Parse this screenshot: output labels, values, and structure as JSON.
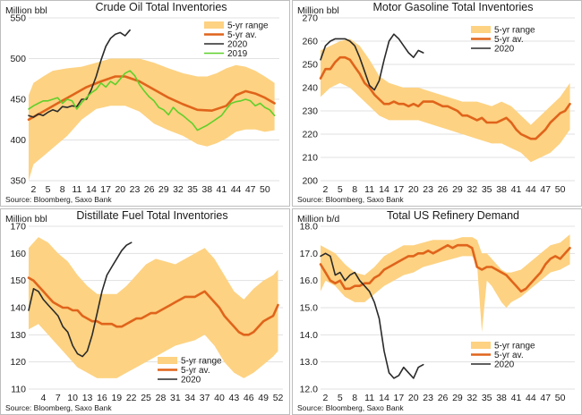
{
  "colors": {
    "range": "#fdd282",
    "average": "#e0641b",
    "y2020": "#2a2a2a",
    "y2019": "#5fd02b",
    "grid": "#e1e1e1",
    "frame": "#bdbdbd"
  },
  "chart_data": [
    {
      "type": "line",
      "title": "Crude Oil Total Inventories",
      "ylabel": "Million bbl",
      "source": "Source: Bloomberg, Saxo Bank",
      "xlim": [
        1,
        53
      ],
      "ylim": [
        350,
        550
      ],
      "yticks": [
        "350",
        "400",
        "450",
        "500",
        "550"
      ],
      "xticks": [
        "2",
        "5",
        "8",
        "11",
        "14",
        "17",
        "20",
        "23",
        "26",
        "29",
        "32",
        "35",
        "38",
        "41",
        "44",
        "47",
        "50"
      ],
      "legend": [
        "5-yr range",
        "5-yr av.",
        "2020",
        "2019"
      ],
      "band": {
        "x": [
          1,
          2,
          4,
          6,
          9,
          12,
          15,
          18,
          21,
          24,
          27,
          30,
          33,
          36,
          38,
          40,
          42,
          44,
          46,
          48,
          50,
          52
        ],
        "low": [
          350,
          370,
          380,
          390,
          405,
          425,
          438,
          442,
          442,
          435,
          420,
          412,
          405,
          395,
          392,
          396,
          402,
          410,
          413,
          413,
          410,
          412
        ],
        "high": [
          455,
          470,
          478,
          485,
          488,
          490,
          495,
          500,
          500,
          500,
          495,
          488,
          482,
          478,
          478,
          482,
          488,
          492,
          490,
          485,
          478,
          470
        ]
      },
      "series": [
        {
          "name": "5-yr av.",
          "x": [
            1,
            4,
            7,
            10,
            13,
            16,
            19,
            21,
            24,
            27,
            30,
            33,
            36,
            39,
            42,
            44,
            46,
            48,
            50,
            52
          ],
          "y": [
            425,
            435,
            445,
            455,
            465,
            472,
            478,
            478,
            472,
            462,
            452,
            444,
            437,
            436,
            442,
            455,
            460,
            457,
            452,
            445
          ]
        },
        {
          "name": "2020",
          "x": [
            1,
            2,
            3,
            4,
            5,
            6,
            7,
            8,
            9,
            10,
            11,
            12,
            13,
            14,
            15,
            16,
            17,
            18,
            19,
            20,
            21,
            22
          ],
          "y": [
            430,
            428,
            432,
            430,
            434,
            437,
            435,
            441,
            440,
            442,
            441,
            450,
            450,
            462,
            478,
            498,
            515,
            525,
            530,
            532,
            528,
            535
          ]
        },
        {
          "name": "2019",
          "x": [
            1,
            2,
            3,
            4,
            5,
            6,
            7,
            8,
            9,
            10,
            11,
            12,
            13,
            14,
            15,
            16,
            17,
            18,
            19,
            20,
            21,
            22,
            23,
            24,
            25,
            26,
            27,
            28,
            29,
            30,
            31,
            32,
            33,
            34,
            35,
            36,
            37,
            38,
            39,
            40,
            41,
            42,
            43,
            44,
            45,
            46,
            47,
            48,
            49,
            50,
            51,
            52
          ],
          "y": [
            438,
            442,
            445,
            448,
            448,
            450,
            452,
            445,
            450,
            448,
            438,
            446,
            452,
            458,
            462,
            470,
            465,
            472,
            468,
            475,
            482,
            485,
            479,
            468,
            460,
            453,
            448,
            440,
            437,
            431,
            440,
            434,
            430,
            425,
            420,
            412,
            415,
            418,
            422,
            426,
            430,
            438,
            445,
            447,
            448,
            450,
            448,
            442,
            445,
            440,
            437,
            430
          ]
        }
      ]
    },
    {
      "type": "line",
      "title": "Motor Gasoline Total Inventories",
      "ylabel": "Million bbl",
      "source": "Source: Bloomberg, Saxo Bank",
      "xlim": [
        1,
        53
      ],
      "ylim": [
        200,
        270
      ],
      "yticks": [
        "200",
        "210",
        "220",
        "230",
        "240",
        "250",
        "260",
        "270"
      ],
      "xticks": [
        "2",
        "5",
        "8",
        "11",
        "14",
        "17",
        "20",
        "23",
        "26",
        "29",
        "32",
        "35",
        "38",
        "41",
        "44",
        "47",
        "50"
      ],
      "legend": [
        "5-yr range",
        "5-yr av.",
        "2020"
      ],
      "band": {
        "x": [
          1,
          3,
          5,
          7,
          9,
          11,
          13,
          15,
          18,
          21,
          24,
          27,
          30,
          33,
          36,
          38,
          40,
          42,
          44,
          46,
          48,
          50,
          52
        ],
        "low": [
          236,
          240,
          242,
          240,
          236,
          232,
          228,
          226,
          226,
          226,
          224,
          222,
          220,
          218,
          216,
          216,
          214,
          212,
          208,
          210,
          212,
          216,
          222
        ],
        "high": [
          256,
          258,
          260,
          261,
          258,
          252,
          245,
          242,
          240,
          240,
          238,
          236,
          234,
          234,
          232,
          234,
          232,
          228,
          224,
          228,
          232,
          236,
          242
        ]
      },
      "series": [
        {
          "name": "5-yr av.",
          "x": [
            1,
            2,
            3,
            4,
            5,
            6,
            7,
            8,
            9,
            10,
            11,
            12,
            13,
            14,
            15,
            16,
            17,
            18,
            19,
            20,
            21,
            22,
            23,
            24,
            25,
            26,
            27,
            28,
            29,
            30,
            31,
            32,
            33,
            34,
            35,
            36,
            37,
            38,
            39,
            40,
            41,
            42,
            43,
            44,
            45,
            46,
            47,
            48,
            49,
            50,
            51,
            52
          ],
          "y": [
            244,
            248,
            248,
            251,
            253,
            253,
            252,
            249,
            246,
            242,
            240,
            237,
            235,
            233,
            233,
            234,
            233,
            233,
            232,
            233,
            232,
            234,
            234,
            234,
            233,
            232,
            232,
            231,
            230,
            228,
            228,
            227,
            226,
            227,
            225,
            225,
            225,
            226,
            227,
            225,
            222,
            220,
            219,
            218,
            218,
            220,
            222,
            225,
            227,
            229,
            230,
            233
          ]
        },
        {
          "name": "2020",
          "x": [
            1,
            2,
            3,
            4,
            5,
            6,
            7,
            8,
            9,
            10,
            11,
            12,
            13,
            14,
            15,
            16,
            17,
            18,
            19,
            20,
            21,
            22
          ],
          "y": [
            252,
            258,
            260,
            261,
            261,
            261,
            260,
            258,
            253,
            247,
            241,
            239,
            243,
            252,
            260,
            263,
            261,
            258,
            255,
            253,
            256,
            255
          ]
        }
      ]
    },
    {
      "type": "line",
      "title": "Distillate Fuel Total Inventories",
      "ylabel": "Million bbl",
      "source": "Source: Bloomberg, Saxo Bank",
      "xlim": [
        1,
        53
      ],
      "ylim": [
        110,
        170
      ],
      "yticks": [
        "110",
        "120",
        "130",
        "140",
        "150",
        "160",
        "170"
      ],
      "xticks": [
        "4",
        "7",
        "10",
        "13",
        "16",
        "19",
        "22",
        "25",
        "28",
        "31",
        "34",
        "37",
        "40",
        "43",
        "46",
        "49",
        "52"
      ],
      "legend": [
        "5-yr range",
        "5-yr av.",
        "2020"
      ],
      "band": {
        "x": [
          1,
          3,
          5,
          7,
          9,
          11,
          13,
          15,
          17,
          19,
          21,
          23,
          25,
          27,
          29,
          31,
          33,
          35,
          37,
          39,
          41,
          43,
          45,
          47,
          49,
          51,
          52
        ],
        "low": [
          132,
          134,
          130,
          126,
          122,
          118,
          116,
          114,
          114,
          114,
          116,
          118,
          120,
          122,
          124,
          126,
          127,
          128,
          130,
          126,
          120,
          116,
          114,
          116,
          119,
          122,
          124
        ],
        "high": [
          162,
          166,
          164,
          160,
          157,
          152,
          148,
          145,
          145,
          145,
          148,
          152,
          156,
          158,
          157,
          156,
          158,
          160,
          162,
          158,
          152,
          146,
          143,
          147,
          150,
          152,
          154
        ]
      },
      "series": [
        {
          "name": "5-yr av.",
          "x": [
            1,
            2,
            3,
            4,
            5,
            6,
            7,
            8,
            9,
            10,
            11,
            12,
            13,
            14,
            15,
            16,
            17,
            18,
            19,
            20,
            21,
            22,
            23,
            24,
            25,
            26,
            27,
            28,
            29,
            30,
            31,
            32,
            33,
            34,
            35,
            36,
            37,
            38,
            39,
            40,
            41,
            42,
            43,
            44,
            45,
            46,
            47,
            48,
            49,
            50,
            51,
            52
          ],
          "y": [
            151,
            150,
            148,
            146,
            144,
            142,
            141,
            140,
            140,
            139,
            139,
            137,
            136,
            135,
            135,
            134,
            134,
            134,
            133,
            133,
            134,
            135,
            136,
            136,
            137,
            138,
            138,
            139,
            140,
            141,
            142,
            143,
            144,
            144,
            144,
            145,
            146,
            144,
            142,
            140,
            137,
            135,
            133,
            131,
            130,
            130,
            131,
            133,
            135,
            136,
            137,
            141
          ]
        },
        {
          "name": "2020",
          "x": [
            1,
            2,
            3,
            4,
            5,
            6,
            7,
            8,
            9,
            10,
            11,
            12,
            13,
            14,
            15,
            16,
            17,
            18,
            19,
            20,
            21,
            22
          ],
          "y": [
            139,
            147,
            146,
            143,
            141,
            139,
            137,
            133,
            131,
            126,
            123,
            122,
            124,
            130,
            138,
            146,
            152,
            155,
            158,
            161,
            163,
            164
          ]
        }
      ]
    },
    {
      "type": "line",
      "title": "Total US Refinery Demand",
      "ylabel": "Million b/d",
      "source": "Source: Bloomberg, Saxo Bank",
      "xlim": [
        1,
        53
      ],
      "ylim": [
        12.0,
        18.0
      ],
      "yticks": [
        "12.0",
        "13.0",
        "14.0",
        "15.0",
        "16.0",
        "17.0",
        "18.0"
      ],
      "xticks": [
        "2",
        "5",
        "8",
        "11",
        "14",
        "17",
        "20",
        "23",
        "26",
        "29",
        "32",
        "35",
        "38",
        "41",
        "44",
        "47",
        "50"
      ],
      "legend": [
        "5-yr range",
        "5-yr av.",
        "2020"
      ],
      "band": {
        "x": [
          1,
          2,
          4,
          6,
          8,
          10,
          12,
          14,
          16,
          18,
          20,
          22,
          24,
          26,
          28,
          30,
          32,
          33,
          34,
          35,
          36,
          37,
          38,
          39,
          40,
          42,
          44,
          46,
          48,
          50,
          52
        ],
        "low": [
          15.6,
          16.0,
          15.8,
          15.4,
          15.2,
          15.2,
          15.5,
          15.8,
          16.0,
          16.2,
          16.3,
          16.5,
          16.6,
          16.7,
          16.8,
          16.9,
          16.9,
          16.6,
          14.1,
          16.0,
          15.8,
          15.5,
          15.2,
          15.0,
          15.2,
          15.4,
          15.7,
          16.0,
          16.3,
          16.4,
          16.6
        ],
        "high": [
          17.3,
          17.2,
          17.0,
          16.6,
          16.3,
          16.2,
          16.5,
          16.9,
          17.1,
          17.3,
          17.3,
          17.4,
          17.5,
          17.5,
          17.5,
          17.6,
          17.6,
          17.5,
          17.0,
          17.0,
          16.8,
          16.6,
          16.4,
          16.3,
          16.3,
          16.4,
          16.7,
          17.0,
          17.3,
          17.4,
          17.7
        ]
      },
      "series": [
        {
          "name": "5-yr av.",
          "x": [
            1,
            2,
            3,
            4,
            5,
            6,
            7,
            8,
            9,
            10,
            11,
            12,
            13,
            14,
            15,
            16,
            17,
            18,
            19,
            20,
            21,
            22,
            23,
            24,
            25,
            26,
            27,
            28,
            29,
            30,
            31,
            32,
            33,
            34,
            35,
            36,
            37,
            38,
            39,
            40,
            41,
            42,
            43,
            44,
            45,
            46,
            47,
            48,
            49,
            50,
            51,
            52
          ],
          "y": [
            16.6,
            16.3,
            16.0,
            15.9,
            16.0,
            15.7,
            15.7,
            15.8,
            15.8,
            15.9,
            15.9,
            16.1,
            16.2,
            16.4,
            16.5,
            16.6,
            16.7,
            16.8,
            16.9,
            16.9,
            17.0,
            17.0,
            17.1,
            17.0,
            17.1,
            17.2,
            17.3,
            17.2,
            17.3,
            17.3,
            17.3,
            17.2,
            16.5,
            16.4,
            16.5,
            16.5,
            16.4,
            16.3,
            16.2,
            16.0,
            15.8,
            15.6,
            15.7,
            15.9,
            16.1,
            16.3,
            16.6,
            16.8,
            16.9,
            16.8,
            17.0,
            17.2
          ]
        },
        {
          "name": "2020",
          "x": [
            1,
            2,
            3,
            4,
            5,
            6,
            7,
            8,
            9,
            10,
            11,
            12,
            13,
            14,
            15,
            16,
            17,
            18,
            19,
            20,
            21,
            22
          ],
          "y": [
            16.9,
            17.0,
            16.9,
            16.2,
            16.3,
            16.0,
            16.2,
            16.3,
            16.0,
            15.8,
            15.6,
            15.2,
            14.6,
            13.4,
            12.6,
            12.4,
            12.5,
            12.8,
            12.6,
            12.4,
            12.8,
            12.9
          ]
        }
      ]
    }
  ]
}
